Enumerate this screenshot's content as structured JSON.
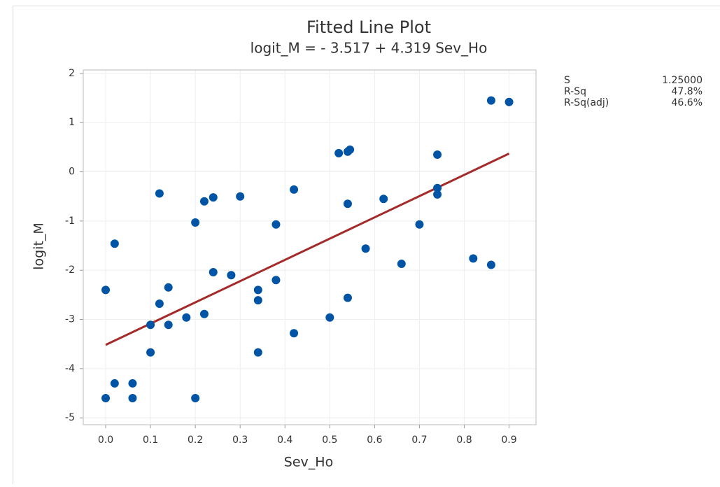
{
  "chart_data": {
    "type": "scatter",
    "title": "Fitted Line Plot",
    "subtitle": "logit_M = - 3.517 + 4.319 Sev_Ho",
    "x_label": "Sev_Ho",
    "y_label": "logit_M",
    "x": [
      0.0,
      0.0,
      0.02,
      0.02,
      0.06,
      0.06,
      0.1,
      0.1,
      0.12,
      0.12,
      0.14,
      0.14,
      0.18,
      0.2,
      0.2,
      0.22,
      0.22,
      0.24,
      0.24,
      0.28,
      0.3,
      0.34,
      0.34,
      0.34,
      0.38,
      0.38,
      0.42,
      0.42,
      0.5,
      0.52,
      0.54,
      0.545,
      0.54,
      0.54,
      0.58,
      0.62,
      0.66,
      0.7,
      0.74,
      0.74,
      0.74,
      0.82,
      0.86,
      0.86,
      0.9
    ],
    "series": [
      {
        "name": "logit_M",
        "color": "#0054a6",
        "values": [
          -2.4,
          -4.6,
          -1.46,
          -4.3,
          -4.3,
          -4.6,
          -3.11,
          -3.67,
          -0.44,
          -2.68,
          -2.35,
          -3.11,
          -2.96,
          -1.03,
          -4.6,
          -2.89,
          -0.6,
          -0.52,
          -2.04,
          -2.1,
          -0.5,
          -2.4,
          -2.61,
          -3.67,
          -2.2,
          -1.07,
          -0.36,
          -3.28,
          -2.96,
          0.38,
          0.41,
          0.45,
          -0.65,
          -2.56,
          -1.56,
          -0.55,
          -1.87,
          -1.07,
          0.35,
          -0.33,
          -0.46,
          -1.76,
          1.45,
          -1.89,
          1.42
        ]
      }
    ],
    "fit": {
      "intercept": -3.517,
      "slope": 4.319,
      "color": "#a52a2a"
    },
    "xlim": [
      -0.05,
      0.96
    ],
    "ylim": [
      -5.14,
      2.07
    ],
    "xticks": [
      {
        "value": 0,
        "label": "0.0"
      },
      0.1,
      0.2,
      0.3,
      0.4,
      0.5,
      0.6,
      0.7,
      0.8,
      0.9
    ],
    "yticks": [
      -5,
      -4,
      -3,
      -2,
      -1,
      0,
      1,
      2
    ],
    "grid": true,
    "stats": [
      {
        "label": "S",
        "value": "1.25000"
      },
      {
        "label": "R-Sq",
        "value": "47.8%"
      },
      {
        "label": "R-Sq(adj)",
        "value": "46.6%"
      }
    ]
  }
}
